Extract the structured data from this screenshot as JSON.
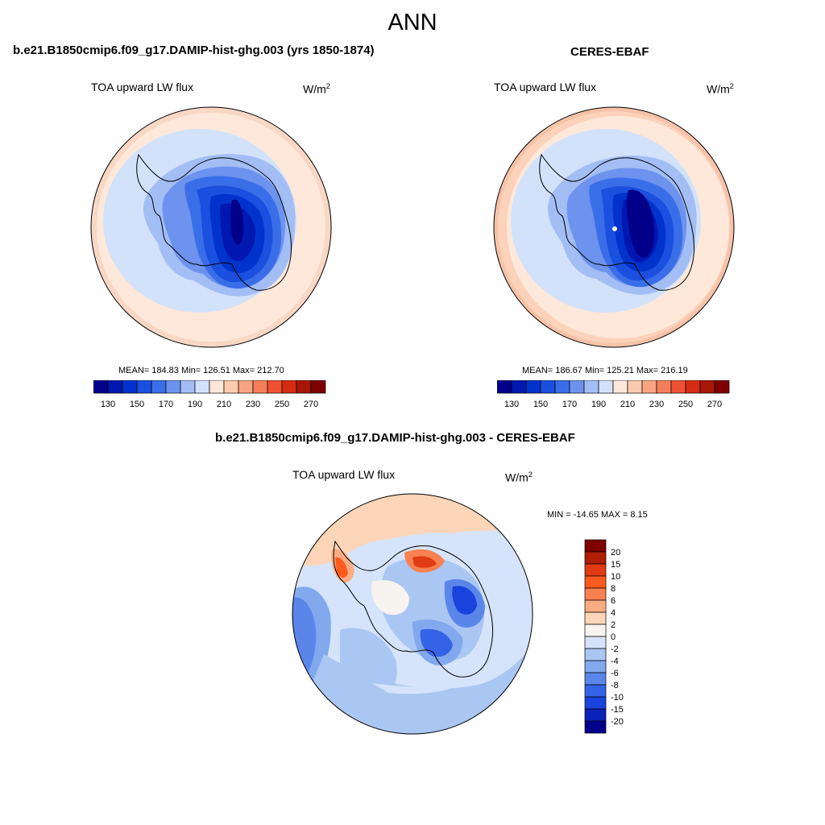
{
  "title": "ANN",
  "panels": [
    {
      "title": "b.e21.B1850cmip6.f09_g17.DAMIP-hist-ghg.003 (yrs 1850-1874)",
      "variable": "TOA upward LW flux",
      "units": "W/m",
      "units_superscript": "2",
      "stats": "MEAN= 184.83  Min= 126.51  Max= 212.70",
      "mean": 184.83,
      "min": 126.51,
      "max": 212.7
    },
    {
      "title": "CERES-EBAF",
      "variable": "TOA upward LW flux",
      "units": "W/m",
      "units_superscript": "2",
      "stats": "MEAN= 186.67  Min= 125.21  Max= 216.19",
      "mean": 186.67,
      "min": 125.21,
      "max": 216.19
    },
    {
      "title": "b.e21.B1850cmip6.f09_g17.DAMIP-hist-ghg.003 - CERES-EBAF",
      "variable": "TOA upward LW flux",
      "units": "W/m",
      "units_superscript": "2",
      "stats": "MIN = -14.65 MAX =   8.15",
      "min": -14.65,
      "max": 8.15
    }
  ],
  "colorbar_abs": {
    "colors": [
      "#00008b",
      "#0018b0",
      "#0033cc",
      "#1a4fe0",
      "#3a6ee8",
      "#6d93ee",
      "#a3bdf5",
      "#d2e2fb",
      "#fde8da",
      "#fccaaf",
      "#f9a582",
      "#f57f5a",
      "#ef5232",
      "#d52d12",
      "#a81605",
      "#7e0000"
    ],
    "tick_labels": [
      "130",
      "150",
      "170",
      "190",
      "210",
      "230",
      "250",
      "270"
    ]
  },
  "colorbar_diff": {
    "colors": [
      "#7e0000",
      "#b01e05",
      "#e03b12",
      "#ff5a1e",
      "#f98050",
      "#fbac82",
      "#fdd5b8",
      "#f7f3ef",
      "#d5e4fa",
      "#aac6f3",
      "#82a8ee",
      "#5a86ea",
      "#3563e8",
      "#1a42dd",
      "#0a22b8",
      "#00008b"
    ],
    "tick_labels": [
      "20",
      "15",
      "10",
      "8",
      "6",
      "4",
      "2",
      "0",
      "-2",
      "-4",
      "-6",
      "-8",
      "-10",
      "-15",
      "-20"
    ]
  }
}
